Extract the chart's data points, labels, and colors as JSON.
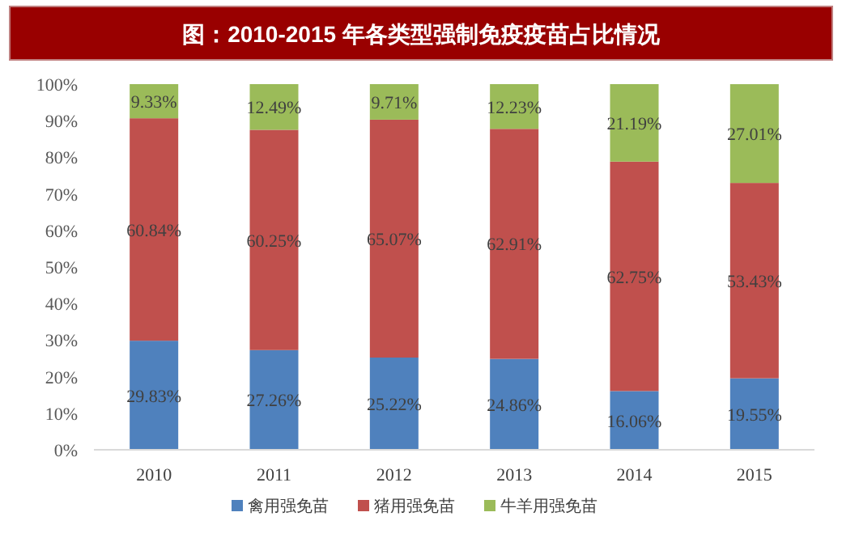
{
  "chart_data": {
    "type": "bar",
    "title": "图：2010-2015 年各类型强制免疫疫苗占比情况",
    "stacked": true,
    "categories": [
      "2010",
      "2011",
      "2012",
      "2013",
      "2014",
      "2015"
    ],
    "series": [
      {
        "name": "禽用强免苗",
        "color": "#4f81bd",
        "values": [
          29.83,
          27.26,
          25.22,
          24.86,
          16.06,
          19.55
        ],
        "value_labels": [
          "29.83%",
          "27.26%",
          "25.22%",
          "24.86%",
          "16.06%",
          "19.55%"
        ]
      },
      {
        "name": "猪用强免苗",
        "color": "#c0504d",
        "values": [
          60.84,
          60.25,
          65.07,
          62.91,
          62.75,
          53.43
        ],
        "value_labels": [
          "60.84%",
          "60.25%",
          "65.07%",
          "62.91%",
          "62.75%",
          "53.43%"
        ]
      },
      {
        "name": "牛羊用强免苗",
        "color": "#9bbb59",
        "values": [
          9.33,
          12.49,
          9.71,
          12.23,
          21.19,
          27.01
        ],
        "value_labels": [
          "9.33%",
          "12.49%",
          "9.71%",
          "12.23%",
          "21.19%",
          "27.01%"
        ]
      }
    ],
    "ylim": [
      0,
      100
    ],
    "yticks": [
      {
        "value": 0,
        "label": "0%"
      },
      {
        "value": 10,
        "label": "10%"
      },
      {
        "value": 20,
        "label": "20%"
      },
      {
        "value": 30,
        "label": "30%"
      },
      {
        "value": 40,
        "label": "40%"
      },
      {
        "value": 50,
        "label": "50%"
      },
      {
        "value": 60,
        "label": "60%"
      },
      {
        "value": 70,
        "label": "70%"
      },
      {
        "value": 80,
        "label": "80%"
      },
      {
        "value": 90,
        "label": "90%"
      },
      {
        "value": 100,
        "label": "100%"
      }
    ],
    "grid": false,
    "legend": "bottom"
  }
}
